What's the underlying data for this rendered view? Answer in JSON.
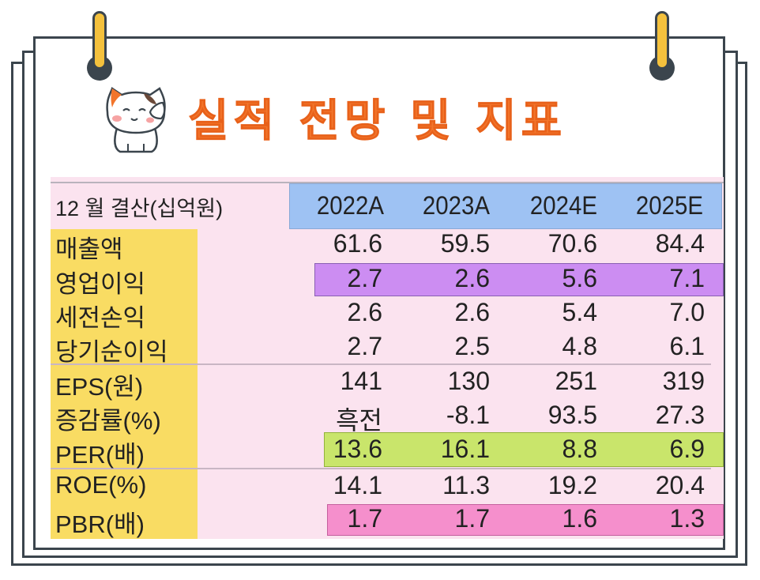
{
  "title": "실적 전망 및 지표",
  "table": {
    "header_label": "12 월 결산(십억원)",
    "years": [
      "2022A",
      "2023A",
      "2024E",
      "2025E"
    ],
    "rows": [
      {
        "label": "매출액",
        "values": [
          "61.6",
          "59.5",
          "70.6",
          "84.4"
        ]
      },
      {
        "label": "영업이익",
        "values": [
          "2.7",
          "2.6",
          "5.6",
          "7.1"
        ]
      },
      {
        "label": "세전손익",
        "values": [
          "2.6",
          "2.6",
          "5.4",
          "7.0"
        ]
      },
      {
        "label": "당기순이익",
        "values": [
          "2.7",
          "2.5",
          "4.8",
          "6.1"
        ]
      },
      {
        "label": "EPS(원)",
        "values": [
          "141",
          "130",
          "251",
          "319"
        ]
      },
      {
        "label": "증감률(%)",
        "values": [
          "흑전",
          "-8.1",
          "93.5",
          "27.3"
        ]
      },
      {
        "label": "PER(배)",
        "values": [
          "13.6",
          "16.1",
          "8.8",
          "6.9"
        ]
      },
      {
        "label": "ROE(%)",
        "values": [
          "14.1",
          "11.3",
          "19.2",
          "20.4"
        ]
      },
      {
        "label": "PBR(배)",
        "values": [
          "1.7",
          "1.7",
          "1.6",
          "1.3"
        ]
      }
    ]
  },
  "colors": {
    "title": "#f2752b",
    "label_column": "#f9dc63",
    "table_background": "#fbe3ef",
    "year_header": "#9ec2f3",
    "operating_income_highlight": "#cc8df2",
    "per_highlight": "#c9e56b",
    "pbr_highlight": "#f58fcc",
    "binder_ring": "#f4c13d",
    "frame": "#3b454d"
  },
  "icons": {
    "binder_rings": "binder-ring-icon",
    "mascot": "calico-cat-mascot-icon"
  }
}
